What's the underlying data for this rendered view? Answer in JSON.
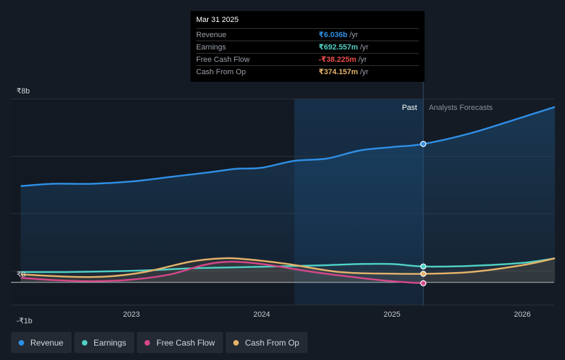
{
  "chart_data": {
    "type": "line",
    "y_tick_labels": [
      "₹8b",
      "₹0",
      "-₹1b"
    ],
    "ylim": [
      -1,
      8
    ],
    "x_tick_labels": [
      "2023",
      "2024",
      "2025",
      "2026"
    ],
    "x_tick_values": [
      2023.0,
      2024.0,
      2025.0,
      2026.0
    ],
    "xlim": [
      2022.15,
      2026.25
    ],
    "divider_x": 2025.24,
    "shade_start_x": 2024.25,
    "past_label": "Past",
    "forecast_label": "Analysts Forecasts",
    "series": [
      {
        "name": "Revenue",
        "color": "#2f8fe6",
        "points": [
          [
            2022.15,
            4.2
          ],
          [
            2022.4,
            4.3
          ],
          [
            2022.7,
            4.3
          ],
          [
            2023.0,
            4.4
          ],
          [
            2023.3,
            4.6
          ],
          [
            2023.6,
            4.8
          ],
          [
            2023.8,
            4.95
          ],
          [
            2024.0,
            5.0
          ],
          [
            2024.25,
            5.3
          ],
          [
            2024.5,
            5.4
          ],
          [
            2024.75,
            5.75
          ],
          [
            2025.0,
            5.9
          ],
          [
            2025.24,
            6.036
          ],
          [
            2025.6,
            6.5
          ],
          [
            2026.0,
            7.2
          ],
          [
            2026.25,
            7.65
          ]
        ]
      },
      {
        "name": "Earnings",
        "color": "#4fd1c5",
        "points": [
          [
            2022.15,
            0.45
          ],
          [
            2022.5,
            0.45
          ],
          [
            2022.8,
            0.48
          ],
          [
            2023.1,
            0.52
          ],
          [
            2023.5,
            0.62
          ],
          [
            2024.0,
            0.68
          ],
          [
            2024.5,
            0.75
          ],
          [
            2024.75,
            0.8
          ],
          [
            2025.0,
            0.8
          ],
          [
            2025.24,
            0.692557
          ],
          [
            2025.6,
            0.72
          ],
          [
            2026.0,
            0.85
          ],
          [
            2026.25,
            1.05
          ]
        ]
      },
      {
        "name": "Free Cash Flow",
        "color": "#d6478a",
        "points": [
          [
            2022.15,
            0.2
          ],
          [
            2022.4,
            0.1
          ],
          [
            2022.7,
            0.05
          ],
          [
            2023.0,
            0.12
          ],
          [
            2023.3,
            0.35
          ],
          [
            2023.55,
            0.75
          ],
          [
            2023.75,
            0.9
          ],
          [
            2024.0,
            0.8
          ],
          [
            2024.4,
            0.45
          ],
          [
            2024.75,
            0.2
          ],
          [
            2025.0,
            0.05
          ],
          [
            2025.24,
            -0.038225
          ]
        ]
      },
      {
        "name": "Cash From Op",
        "color": "#e5b36a",
        "points": [
          [
            2022.15,
            0.35
          ],
          [
            2022.5,
            0.25
          ],
          [
            2022.8,
            0.25
          ],
          [
            2023.1,
            0.45
          ],
          [
            2023.45,
            0.9
          ],
          [
            2023.7,
            1.05
          ],
          [
            2023.9,
            1.0
          ],
          [
            2024.2,
            0.8
          ],
          [
            2024.6,
            0.45
          ],
          [
            2025.0,
            0.38
          ],
          [
            2025.24,
            0.374157
          ],
          [
            2025.6,
            0.45
          ],
          [
            2026.0,
            0.75
          ],
          [
            2026.25,
            1.05
          ]
        ]
      }
    ]
  },
  "tooltip": {
    "date": "Mar 31 2025",
    "rows": [
      {
        "label": "Revenue",
        "value": "₹6.036b",
        "unit": "/yr",
        "color": "#2f8fe6"
      },
      {
        "label": "Earnings",
        "value": "₹692.557m",
        "unit": "/yr",
        "color": "#4fd1c5"
      },
      {
        "label": "Free Cash Flow",
        "value": "-₹38.225m",
        "unit": "/yr",
        "color": "#ef4d4d"
      },
      {
        "label": "Cash From Op",
        "value": "₹374.157m",
        "unit": "/yr",
        "color": "#e5b36a"
      }
    ]
  },
  "legend": [
    {
      "label": "Revenue",
      "color": "#2f8fe6"
    },
    {
      "label": "Earnings",
      "color": "#4fd1c5"
    },
    {
      "label": "Free Cash Flow",
      "color": "#d6478a"
    },
    {
      "label": "Cash From Op",
      "color": "#e5b36a"
    }
  ]
}
